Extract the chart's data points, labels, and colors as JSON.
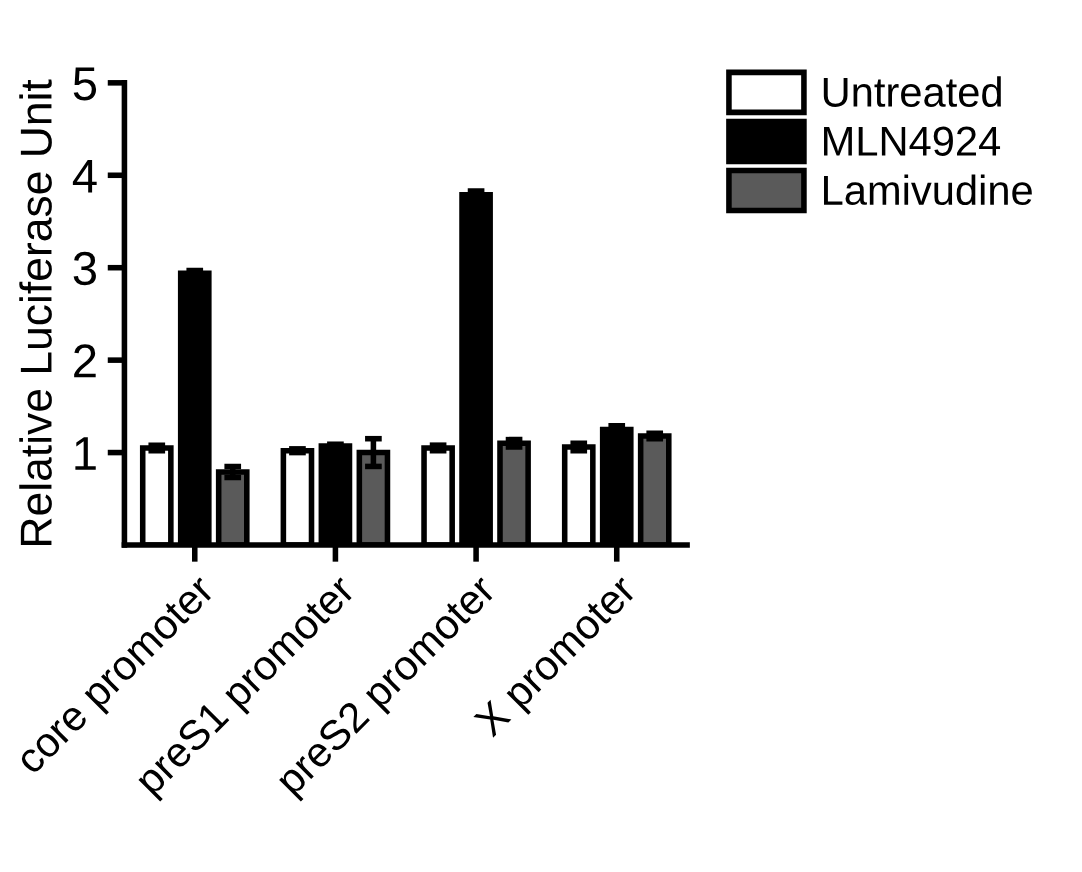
{
  "chart_data": {
    "type": "bar",
    "ylabel": "Relative Luciferase Unit",
    "categories": [
      "core promoter",
      "preS1 promoter",
      "preS2 promoter",
      "X promoter"
    ],
    "series": [
      {
        "name": "Untreated",
        "color": "#ffffff",
        "values": [
          1.05,
          1.02,
          1.05,
          1.06
        ],
        "errors": [
          0.03,
          0.02,
          0.03,
          0.04
        ]
      },
      {
        "name": "MLN4924",
        "color": "#000000",
        "values": [
          2.94,
          1.07,
          3.79,
          1.25
        ],
        "errors": [
          0.03,
          0.02,
          0.04,
          0.04
        ]
      },
      {
        "name": "Lamivudine",
        "color": "#5a5a5a",
        "values": [
          0.79,
          1.0,
          1.1,
          1.18
        ],
        "errors": [
          0.06,
          0.15,
          0.04,
          0.03
        ]
      }
    ],
    "ylim": [
      0,
      5
    ],
    "yticks": [
      1,
      2,
      3,
      4,
      5
    ],
    "grid": false,
    "legend": "top right"
  }
}
